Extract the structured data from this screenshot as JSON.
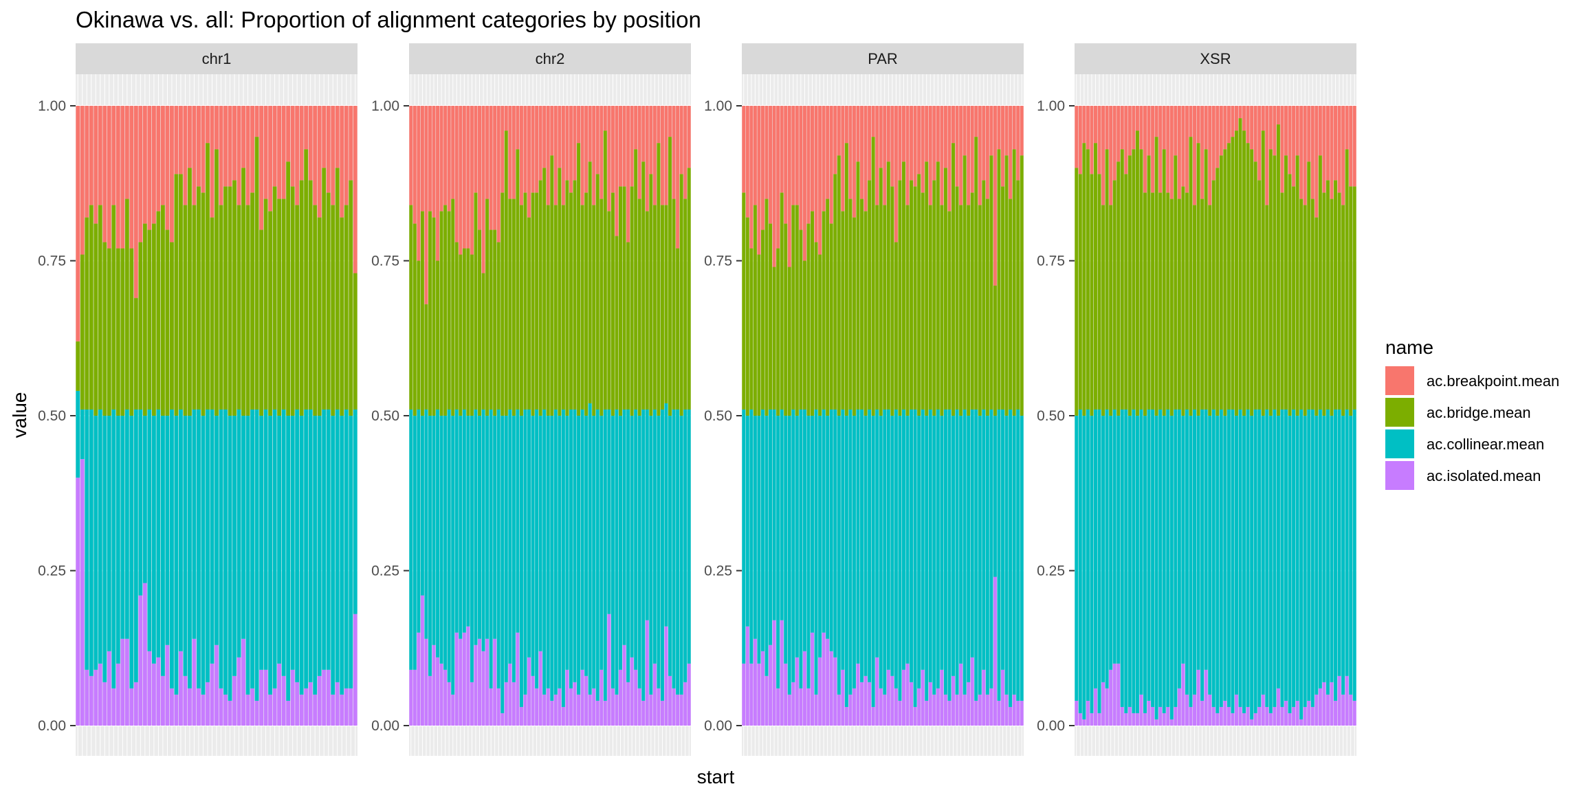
{
  "chart_data": {
    "type": "bar",
    "stacked": true,
    "title": "Okinawa vs. all: Proportion of alignment categories by position",
    "xlabel": "start",
    "ylabel": "value",
    "ylim": [
      0,
      1
    ],
    "yticks": [
      "0.00",
      "0.25",
      "0.50",
      "0.75",
      "1.00"
    ],
    "grid": true,
    "legend": {
      "title": "name",
      "placement": "right",
      "entries": [
        "ac.breakpoint.mean",
        "ac.bridge.mean",
        "ac.collinear.mean",
        "ac.isolated.mean"
      ]
    },
    "colors": {
      "ac.breakpoint.mean": "#F8766D",
      "ac.bridge.mean": "#7CAE00",
      "ac.collinear.mean": "#00BFC4",
      "ac.isolated.mean": "#C77CFF"
    },
    "stack_order_bottom_to_top": [
      "ac.isolated.mean",
      "ac.collinear.mean",
      "ac.bridge.mean",
      "ac.breakpoint.mean"
    ],
    "panels": [
      {
        "name": "chr1",
        "isolated_top": [
          0.4,
          0.43,
          0.09,
          0.08,
          0.09,
          0.1,
          0.07,
          0.12,
          0.06,
          0.1,
          0.14,
          0.14,
          0.06,
          0.07,
          0.21,
          0.23,
          0.12,
          0.1,
          0.11,
          0.08,
          0.13,
          0.06,
          0.05,
          0.12,
          0.08,
          0.06,
          0.14,
          0.06,
          0.05,
          0.07,
          0.1,
          0.13,
          0.06,
          0.05,
          0.04,
          0.08,
          0.11,
          0.14,
          0.05,
          0.06,
          0.04,
          0.09,
          0.09,
          0.05,
          0.06,
          0.1,
          0.08,
          0.04,
          0.09,
          0.07,
          0.05,
          0.06,
          0.07,
          0.05,
          0.08,
          0.09,
          0.09,
          0.05,
          0.07,
          0.05,
          0.06,
          0.06,
          0.18
        ],
        "collinear_top": [
          0.54,
          0.51,
          0.51,
          0.51,
          0.5,
          0.51,
          0.5,
          0.5,
          0.51,
          0.5,
          0.5,
          0.51,
          0.5,
          0.51,
          0.51,
          0.5,
          0.51,
          0.5,
          0.51,
          0.5,
          0.5,
          0.51,
          0.5,
          0.51,
          0.5,
          0.5,
          0.51,
          0.51,
          0.5,
          0.51,
          0.51,
          0.5,
          0.51,
          0.51,
          0.5,
          0.5,
          0.51,
          0.5,
          0.5,
          0.51,
          0.51,
          0.5,
          0.51,
          0.5,
          0.51,
          0.5,
          0.51,
          0.5,
          0.5,
          0.51,
          0.5,
          0.51,
          0.51,
          0.5,
          0.5,
          0.51,
          0.51,
          0.5,
          0.51,
          0.5,
          0.51,
          0.5,
          0.51
        ],
        "bridge_top": [
          0.62,
          0.76,
          0.82,
          0.84,
          0.81,
          0.84,
          0.78,
          0.77,
          0.84,
          0.77,
          0.77,
          0.85,
          0.77,
          0.69,
          0.78,
          0.81,
          0.8,
          0.81,
          0.83,
          0.84,
          0.8,
          0.78,
          0.89,
          0.89,
          0.84,
          0.9,
          0.84,
          0.87,
          0.86,
          0.94,
          0.82,
          0.93,
          0.84,
          0.87,
          0.87,
          0.88,
          0.84,
          0.9,
          0.84,
          0.86,
          0.95,
          0.8,
          0.85,
          0.83,
          0.87,
          0.85,
          0.85,
          0.91,
          0.87,
          0.84,
          0.88,
          0.93,
          0.88,
          0.84,
          0.82,
          0.9,
          0.86,
          0.84,
          0.9,
          0.82,
          0.84,
          0.88,
          0.73
        ]
      },
      {
        "name": "chr2",
        "isolated_top": [
          0.09,
          0.09,
          0.15,
          0.21,
          0.14,
          0.08,
          0.13,
          0.11,
          0.1,
          0.09,
          0.07,
          0.05,
          0.15,
          0.14,
          0.15,
          0.16,
          0.07,
          0.13,
          0.14,
          0.12,
          0.14,
          0.06,
          0.14,
          0.06,
          0.02,
          0.07,
          0.1,
          0.07,
          0.15,
          0.03,
          0.05,
          0.11,
          0.08,
          0.06,
          0.12,
          0.05,
          0.06,
          0.04,
          0.05,
          0.06,
          0.03,
          0.09,
          0.06,
          0.07,
          0.05,
          0.09,
          0.08,
          0.05,
          0.06,
          0.04,
          0.09,
          0.04,
          0.18,
          0.06,
          0.05,
          0.09,
          0.13,
          0.07,
          0.11,
          0.09,
          0.06,
          0.04,
          0.17,
          0.05,
          0.1,
          0.06,
          0.04,
          0.16,
          0.08,
          0.06,
          0.05,
          0.05,
          0.07,
          0.1
        ],
        "collinear_top": [
          0.51,
          0.5,
          0.51,
          0.5,
          0.51,
          0.5,
          0.5,
          0.51,
          0.5,
          0.5,
          0.51,
          0.5,
          0.51,
          0.5,
          0.51,
          0.5,
          0.5,
          0.51,
          0.5,
          0.51,
          0.5,
          0.51,
          0.5,
          0.51,
          0.5,
          0.5,
          0.51,
          0.5,
          0.51,
          0.5,
          0.51,
          0.51,
          0.5,
          0.51,
          0.5,
          0.51,
          0.5,
          0.5,
          0.51,
          0.5,
          0.51,
          0.5,
          0.51,
          0.51,
          0.5,
          0.51,
          0.5,
          0.52,
          0.5,
          0.51,
          0.5,
          0.51,
          0.51,
          0.5,
          0.51,
          0.5,
          0.51,
          0.51,
          0.5,
          0.51,
          0.5,
          0.51,
          0.51,
          0.5,
          0.51,
          0.5,
          0.51,
          0.52,
          0.5,
          0.51,
          0.51,
          0.5,
          0.51,
          0.51
        ],
        "bridge_top": [
          0.84,
          0.81,
          0.75,
          0.83,
          0.68,
          0.83,
          0.82,
          0.75,
          0.83,
          0.84,
          0.83,
          0.85,
          0.78,
          0.76,
          0.77,
          0.77,
          0.76,
          0.86,
          0.8,
          0.73,
          0.85,
          0.8,
          0.8,
          0.78,
          0.86,
          0.96,
          0.85,
          0.85,
          0.93,
          0.84,
          0.86,
          0.82,
          0.86,
          0.86,
          0.88,
          0.9,
          0.84,
          0.92,
          0.84,
          0.9,
          0.84,
          0.88,
          0.86,
          0.88,
          0.94,
          0.84,
          0.86,
          0.91,
          0.84,
          0.89,
          0.85,
          0.96,
          0.83,
          0.86,
          0.79,
          0.87,
          0.87,
          0.78,
          0.87,
          0.93,
          0.85,
          0.91,
          0.83,
          0.89,
          0.84,
          0.94,
          0.84,
          0.84,
          0.95,
          0.85,
          0.77,
          0.89,
          0.85,
          0.9
        ]
      },
      {
        "name": "PAR",
        "isolated_top": [
          0.1,
          0.16,
          0.1,
          0.14,
          0.1,
          0.12,
          0.08,
          0.13,
          0.17,
          0.06,
          0.17,
          0.1,
          0.05,
          0.07,
          0.11,
          0.06,
          0.12,
          0.06,
          0.15,
          0.05,
          0.11,
          0.15,
          0.14,
          0.12,
          0.11,
          0.05,
          0.09,
          0.03,
          0.05,
          0.06,
          0.1,
          0.07,
          0.08,
          0.07,
          0.03,
          0.11,
          0.06,
          0.05,
          0.09,
          0.08,
          0.06,
          0.04,
          0.09,
          0.1,
          0.07,
          0.03,
          0.06,
          0.09,
          0.04,
          0.07,
          0.05,
          0.06,
          0.09,
          0.05,
          0.04,
          0.08,
          0.05,
          0.1,
          0.05,
          0.07,
          0.11,
          0.04,
          0.05,
          0.09,
          0.05,
          0.06,
          0.24,
          0.04,
          0.09,
          0.05,
          0.03,
          0.05,
          0.04,
          0.04
        ],
        "collinear_top": [
          0.51,
          0.5,
          0.51,
          0.5,
          0.5,
          0.51,
          0.5,
          0.51,
          0.51,
          0.5,
          0.51,
          0.5,
          0.5,
          0.51,
          0.5,
          0.51,
          0.51,
          0.5,
          0.5,
          0.51,
          0.5,
          0.51,
          0.5,
          0.51,
          0.51,
          0.5,
          0.51,
          0.5,
          0.51,
          0.5,
          0.51,
          0.51,
          0.5,
          0.51,
          0.5,
          0.51,
          0.5,
          0.51,
          0.51,
          0.5,
          0.51,
          0.5,
          0.51,
          0.5,
          0.51,
          0.51,
          0.5,
          0.51,
          0.5,
          0.51,
          0.5,
          0.51,
          0.5,
          0.51,
          0.51,
          0.5,
          0.51,
          0.5,
          0.51,
          0.5,
          0.51,
          0.51,
          0.5,
          0.51,
          0.5,
          0.51,
          0.5,
          0.51,
          0.51,
          0.5,
          0.51,
          0.5,
          0.51,
          0.5
        ],
        "bridge_top": [
          0.86,
          0.82,
          0.77,
          0.84,
          0.76,
          0.8,
          0.85,
          0.81,
          0.74,
          0.77,
          0.86,
          0.81,
          0.74,
          0.84,
          0.84,
          0.8,
          0.75,
          0.81,
          0.83,
          0.78,
          0.76,
          0.83,
          0.85,
          0.81,
          0.89,
          0.92,
          0.83,
          0.94,
          0.85,
          0.82,
          0.91,
          0.85,
          0.83,
          0.88,
          0.95,
          0.84,
          0.9,
          0.84,
          0.91,
          0.87,
          0.78,
          0.88,
          0.91,
          0.84,
          0.88,
          0.87,
          0.89,
          0.86,
          0.91,
          0.84,
          0.88,
          0.91,
          0.84,
          0.9,
          0.83,
          0.94,
          0.87,
          0.84,
          0.92,
          0.84,
          0.86,
          0.95,
          0.84,
          0.88,
          0.85,
          0.92,
          0.71,
          0.93,
          0.87,
          0.92,
          0.85,
          0.93,
          0.88,
          0.92
        ]
      },
      {
        "name": "XSR",
        "isolated_top": [
          0.04,
          0.02,
          0.01,
          0.04,
          0.02,
          0.06,
          0.02,
          0.07,
          0.06,
          0.09,
          0.1,
          0.1,
          0.03,
          0.02,
          0.03,
          0.02,
          0.02,
          0.05,
          0.02,
          0.04,
          0.03,
          0.01,
          0.03,
          0.02,
          0.03,
          0.01,
          0.03,
          0.06,
          0.1,
          0.05,
          0.03,
          0.05,
          0.09,
          0.04,
          0.09,
          0.05,
          0.03,
          0.02,
          0.03,
          0.04,
          0.03,
          0.02,
          0.05,
          0.03,
          0.02,
          0.03,
          0.01,
          0.02,
          0.03,
          0.05,
          0.03,
          0.02,
          0.03,
          0.06,
          0.03,
          0.04,
          0.02,
          0.03,
          0.04,
          0.01,
          0.03,
          0.04,
          0.03,
          0.05,
          0.06,
          0.07,
          0.05,
          0.07,
          0.04,
          0.08,
          0.05,
          0.08,
          0.05,
          0.04
        ],
        "collinear_top": [
          0.5,
          0.51,
          0.5,
          0.51,
          0.5,
          0.51,
          0.51,
          0.5,
          0.51,
          0.5,
          0.51,
          0.5,
          0.51,
          0.51,
          0.5,
          0.51,
          0.5,
          0.51,
          0.5,
          0.51,
          0.51,
          0.5,
          0.51,
          0.5,
          0.51,
          0.5,
          0.51,
          0.51,
          0.5,
          0.51,
          0.5,
          0.51,
          0.5,
          0.51,
          0.51,
          0.5,
          0.51,
          0.5,
          0.51,
          0.5,
          0.51,
          0.51,
          0.5,
          0.51,
          0.5,
          0.51,
          0.5,
          0.51,
          0.51,
          0.5,
          0.51,
          0.5,
          0.51,
          0.5,
          0.51,
          0.51,
          0.5,
          0.51,
          0.5,
          0.51,
          0.5,
          0.51,
          0.51,
          0.5,
          0.51,
          0.5,
          0.51,
          0.5,
          0.51,
          0.51,
          0.5,
          0.51,
          0.5,
          0.51
        ],
        "bridge_top": [
          0.9,
          0.89,
          0.94,
          0.93,
          0.89,
          0.94,
          0.89,
          0.84,
          0.93,
          0.84,
          0.88,
          0.91,
          0.93,
          0.89,
          0.92,
          0.93,
          0.96,
          0.93,
          0.86,
          0.92,
          0.86,
          0.95,
          0.86,
          0.93,
          0.86,
          0.85,
          0.92,
          0.85,
          0.87,
          0.86,
          0.95,
          0.84,
          0.94,
          0.85,
          0.93,
          0.84,
          0.88,
          0.9,
          0.92,
          0.93,
          0.94,
          0.95,
          0.96,
          0.98,
          0.96,
          0.94,
          0.93,
          0.91,
          0.88,
          0.96,
          0.84,
          0.93,
          0.92,
          0.97,
          0.86,
          0.92,
          0.89,
          0.87,
          0.92,
          0.85,
          0.84,
          0.91,
          0.85,
          0.82,
          0.92,
          0.86,
          0.88,
          0.85,
          0.88,
          0.86,
          0.84,
          0.93,
          0.87,
          0.87
        ]
      }
    ]
  }
}
